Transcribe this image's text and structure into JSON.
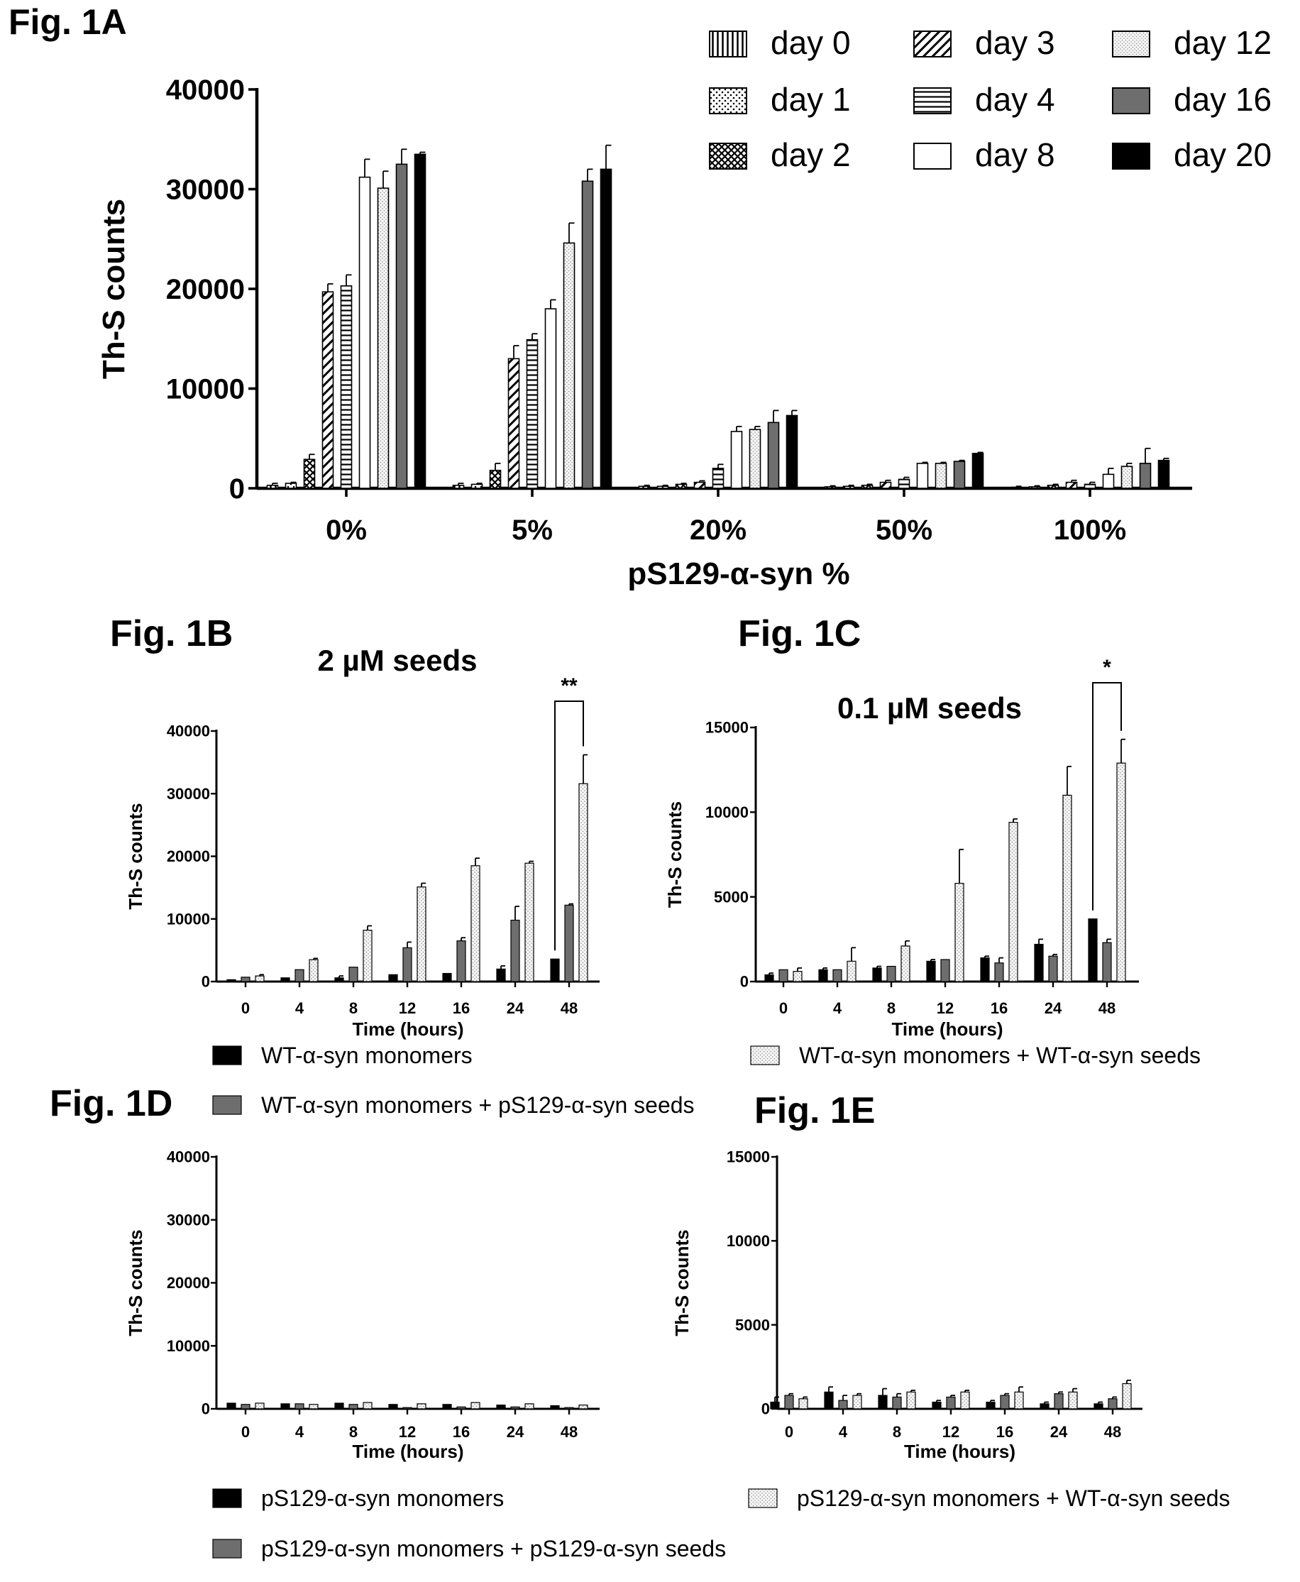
{
  "colors": {
    "black": "#000000",
    "dark_gray": "#6e6e6e",
    "light_dots": "#f4f4f4",
    "gray": "#a8a8a8",
    "white": "#ffffff"
  },
  "chart_data": [
    {
      "panel": "Fig. 1A",
      "type": "bar",
      "title": "",
      "xlabel": "pS129-α-syn %",
      "ylabel": "Th-S counts",
      "categories": [
        "0%",
        "5%",
        "20%",
        "50%",
        "100%"
      ],
      "ylim": [
        0,
        40000
      ],
      "yticks": [
        0,
        10000,
        20000,
        30000,
        40000
      ],
      "grid": false,
      "legend_position": "top-right",
      "series": [
        {
          "name": "day 0",
          "pattern": "vlines",
          "values": [
            300,
            300,
            200,
            150,
            100
          ],
          "errors": [
            200,
            200,
            100,
            100,
            100
          ]
        },
        {
          "name": "day 1",
          "pattern": "dots",
          "values": [
            500,
            400,
            200,
            200,
            150
          ],
          "errors": [
            100,
            100,
            100,
            100,
            100
          ]
        },
        {
          "name": "day 2",
          "pattern": "crosshatch",
          "values": [
            2900,
            1800,
            400,
            300,
            300
          ],
          "errors": [
            500,
            700,
            100,
            100,
            100
          ]
        },
        {
          "name": "day 3",
          "pattern": "diag",
          "values": [
            19700,
            13000,
            600,
            600,
            600
          ],
          "errors": [
            800,
            1300,
            150,
            200,
            200
          ]
        },
        {
          "name": "day 4",
          "pattern": "hlines",
          "values": [
            20300,
            14900,
            2000,
            900,
            400
          ],
          "errors": [
            1100,
            600,
            400,
            200,
            200
          ]
        },
        {
          "name": "day 8",
          "pattern": "white",
          "values": [
            31200,
            18000,
            5700,
            2500,
            1400
          ],
          "errors": [
            1800,
            900,
            500,
            100,
            600
          ]
        },
        {
          "name": "day 12",
          "pattern": "lightdots",
          "values": [
            30100,
            24600,
            5900,
            2500,
            2200
          ],
          "errors": [
            1700,
            2000,
            300,
            100,
            300
          ]
        },
        {
          "name": "day 16",
          "pattern": "gray",
          "values": [
            32500,
            30800,
            6600,
            2700,
            2500
          ],
          "errors": [
            1500,
            1200,
            1200,
            100,
            1500
          ]
        },
        {
          "name": "day 20",
          "pattern": "black",
          "values": [
            33500,
            32000,
            7300,
            3500,
            2800
          ],
          "errors": [
            200,
            2400,
            500,
            100,
            200
          ]
        }
      ]
    },
    {
      "panel": "Fig. 1B",
      "type": "bar",
      "title": "2 µM seeds",
      "xlabel": "Time (hours)",
      "ylabel": "Th-S counts",
      "categories": [
        "0",
        "4",
        "8",
        "12",
        "16",
        "24",
        "48"
      ],
      "ylim": [
        0,
        40000
      ],
      "yticks": [
        0,
        10000,
        20000,
        30000,
        40000
      ],
      "grid": false,
      "significance": {
        "category": "48",
        "label": "**"
      },
      "series": [
        {
          "name": "WT-α-syn monomers",
          "pattern": "black",
          "values": [
            300,
            600,
            600,
            1100,
            1300,
            2000,
            3600
          ],
          "errors": [
            0,
            0,
            300,
            0,
            0,
            500,
            0
          ]
        },
        {
          "name": "WT-α-syn monomers + pS129-α-syn seeds",
          "pattern": "gray",
          "values": [
            700,
            1900,
            2300,
            5400,
            6500,
            9800,
            12200
          ],
          "errors": [
            0,
            0,
            0,
            900,
            500,
            2200,
            200
          ]
        },
        {
          "name": "WT-α-syn monomers + WT-α-syn seeds",
          "pattern": "lightdots",
          "values": [
            900,
            3500,
            8200,
            15100,
            18500,
            18900,
            31600
          ],
          "errors": [
            200,
            200,
            700,
            600,
            1200,
            300,
            4600
          ]
        }
      ]
    },
    {
      "panel": "Fig. 1C",
      "type": "bar",
      "title": "0.1 µM seeds",
      "xlabel": "Time (hours)",
      "ylabel": "Th-S counts",
      "categories": [
        "0",
        "4",
        "8",
        "12",
        "16",
        "24",
        "48"
      ],
      "ylim": [
        0,
        15000
      ],
      "yticks": [
        0,
        5000,
        10000,
        15000
      ],
      "grid": false,
      "significance": {
        "category": "48",
        "label": "*"
      },
      "series": [
        {
          "name": "WT-α-syn monomers",
          "pattern": "black",
          "values": [
            400,
            700,
            800,
            1200,
            1400,
            2200,
            3700
          ],
          "errors": [
            100,
            100,
            100,
            100,
            100,
            300,
            0
          ]
        },
        {
          "name": "WT-α-syn monomers + pS129-α-syn seeds",
          "pattern": "gray",
          "values": [
            700,
            700,
            900,
            1300,
            1100,
            1500,
            2300
          ],
          "errors": [
            0,
            0,
            0,
            0,
            300,
            100,
            200
          ]
        },
        {
          "name": "WT-α-syn monomers + WT-α-syn seeds",
          "pattern": "lightdots",
          "values": [
            600,
            1200,
            2100,
            5800,
            9400,
            11000,
            12900
          ],
          "errors": [
            200,
            800,
            300,
            2000,
            200,
            1700,
            1400
          ]
        }
      ]
    },
    {
      "panel": "Fig. 1D",
      "type": "bar",
      "title": "",
      "xlabel": "Time (hours)",
      "ylabel": "Th-S counts",
      "categories": [
        "0",
        "4",
        "8",
        "12",
        "16",
        "24",
        "48"
      ],
      "ylim": [
        0,
        40000
      ],
      "yticks": [
        0,
        10000,
        20000,
        30000,
        40000
      ],
      "grid": false,
      "series": [
        {
          "name": "pS129-α-syn monomers",
          "pattern": "black",
          "values": [
            900,
            800,
            900,
            700,
            700,
            600,
            500
          ],
          "errors": [
            0,
            0,
            0,
            0,
            0,
            0,
            0
          ]
        },
        {
          "name": "pS129-α-syn monomers + pS129-α-syn seeds",
          "pattern": "gray",
          "values": [
            700,
            800,
            700,
            200,
            300,
            300,
            200
          ],
          "errors": [
            0,
            0,
            0,
            0,
            0,
            0,
            0
          ]
        },
        {
          "name": "pS129-α-syn monomers + WT-α-syn seeds",
          "pattern": "lightdots",
          "values": [
            900,
            700,
            1000,
            800,
            1000,
            800,
            600
          ],
          "errors": [
            0,
            0,
            0,
            0,
            0,
            0,
            0
          ]
        }
      ]
    },
    {
      "panel": "Fig. 1E",
      "type": "bar",
      "title": "",
      "xlabel": "Time (hours)",
      "ylabel": "Th-S counts",
      "categories": [
        "0",
        "4",
        "8",
        "12",
        "16",
        "24",
        "48"
      ],
      "ylim": [
        0,
        15000
      ],
      "yticks": [
        0,
        5000,
        10000,
        15000
      ],
      "grid": false,
      "series": [
        {
          "name": "pS129-α-syn monomers",
          "pattern": "black",
          "values": [
            400,
            1000,
            800,
            400,
            400,
            300,
            300
          ],
          "errors": [
            300,
            300,
            400,
            100,
            100,
            100,
            100
          ]
        },
        {
          "name": "pS129-α-syn monomers + pS129-α-syn seeds",
          "pattern": "gray",
          "values": [
            800,
            500,
            700,
            700,
            800,
            900,
            600
          ],
          "errors": [
            100,
            300,
            200,
            100,
            100,
            100,
            100
          ]
        },
        {
          "name": "pS129-α-syn monomers + WT-α-syn seeds",
          "pattern": "lightdots",
          "values": [
            600,
            800,
            1000,
            1000,
            1000,
            1000,
            1500
          ],
          "errors": [
            100,
            100,
            100,
            100,
            300,
            200,
            200
          ]
        }
      ]
    }
  ],
  "legend_bc": [
    "WT-α-syn monomers",
    "WT-α-syn monomers + pS129-α-syn seeds",
    "WT-α-syn monomers + WT-α-syn seeds"
  ],
  "legend_de": [
    "pS129-α-syn monomers",
    "pS129-α-syn monomers + pS129-α-syn seeds",
    "pS129-α-syn monomers + WT-α-syn seeds"
  ]
}
